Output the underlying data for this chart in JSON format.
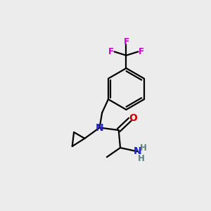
{
  "bg_color": "#ececec",
  "atom_colors": {
    "C": "#000000",
    "N": "#2020cc",
    "O": "#cc0000",
    "F": "#cc00cc",
    "H": "#5c8080"
  },
  "bond_color": "#000000",
  "bond_lw": 1.6,
  "figsize": [
    3.0,
    3.0
  ],
  "dpi": 100
}
